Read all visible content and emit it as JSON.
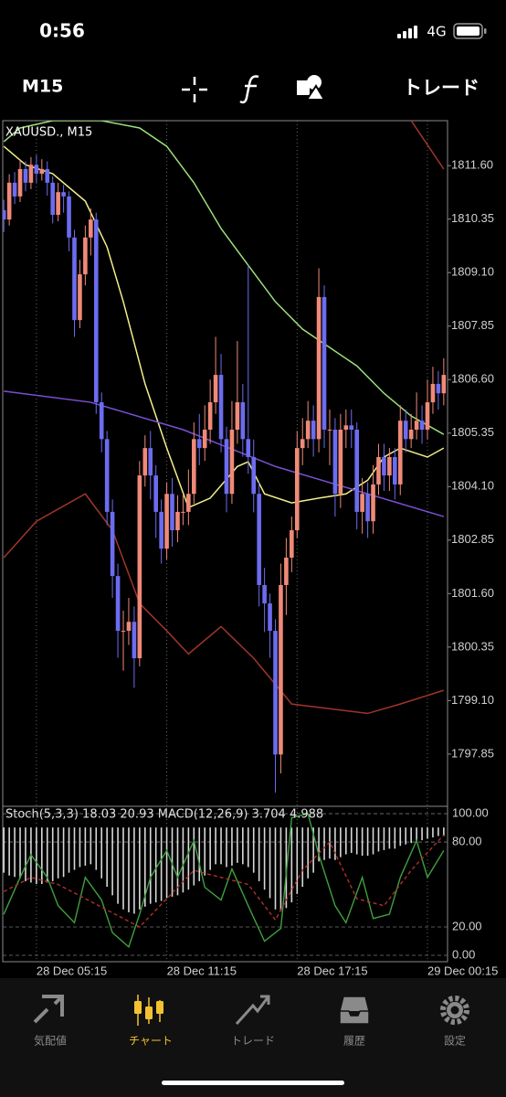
{
  "status_bar": {
    "time": "0:56",
    "network": "4G"
  },
  "toolbar": {
    "timeframe": "M15",
    "trade": "トレード"
  },
  "chart_data": [
    {
      "type": "candlestick",
      "title": "XAUUSD., M15",
      "up_color": "#f08a78",
      "down_color": "#6c6cf0",
      "xlim": [
        -0.2,
        81.7
      ],
      "ylim": [
        1796.63,
        1812.65
      ],
      "yticks": [
        {
          "value": 1811.6,
          "label": "1811.60"
        },
        1810.35,
        {
          "value": 1809.1,
          "label": "1809.10"
        },
        1807.85,
        {
          "value": 1806.6,
          "label": "1806.60"
        },
        1805.35,
        {
          "value": 1804.1,
          "label": "1804.10"
        },
        1802.85,
        {
          "value": 1801.6,
          "label": "1801.60"
        },
        1800.35,
        {
          "value": 1799.1,
          "label": "1799.10"
        },
        1797.85
      ],
      "ohlc": [
        [
          1810.56,
          1810.8,
          1810.05,
          1810.34
        ],
        [
          1810.34,
          1811.4,
          1810.2,
          1811.2
        ],
        [
          1811.2,
          1811.45,
          1810.7,
          1810.88
        ],
        [
          1810.88,
          1811.75,
          1810.75,
          1811.52
        ],
        [
          1811.52,
          1811.7,
          1811.0,
          1811.2
        ],
        [
          1811.2,
          1811.8,
          1811.05,
          1811.62
        ],
        [
          1811.62,
          1811.85,
          1811.2,
          1811.41
        ],
        [
          1811.41,
          1811.75,
          1811.25,
          1811.52
        ],
        [
          1811.52,
          1811.7,
          1810.9,
          1811.2
        ],
        [
          1811.2,
          1811.35,
          1810.25,
          1810.45
        ],
        [
          1810.45,
          1811.2,
          1810.3,
          1810.98
        ],
        [
          1810.98,
          1811.15,
          1810.5,
          1810.88
        ],
        [
          1810.88,
          1811.0,
          1809.6,
          1809.92
        ],
        [
          1809.92,
          1810.1,
          1807.6,
          1807.99
        ],
        [
          1807.99,
          1809.4,
          1807.8,
          1809.06
        ],
        [
          1809.06,
          1810.2,
          1808.8,
          1809.92
        ],
        [
          1809.92,
          1810.6,
          1809.5,
          1810.34
        ],
        [
          1810.34,
          1810.5,
          1805.8,
          1806.07
        ],
        [
          1806.07,
          1806.3,
          1804.9,
          1805.21
        ],
        [
          1805.21,
          1805.4,
          1803.2,
          1803.51
        ],
        [
          1803.51,
          1803.8,
          1801.5,
          1802.01
        ],
        [
          1802.01,
          1802.3,
          1800.1,
          1800.73
        ],
        [
          1800.73,
          1801.2,
          1799.8,
          1800.73
        ],
        [
          1800.73,
          1801.5,
          1800.4,
          1800.94
        ],
        [
          1800.94,
          1801.3,
          1799.4,
          1800.09
        ],
        [
          1800.09,
          1804.7,
          1799.9,
          1804.36
        ],
        [
          1804.36,
          1805.3,
          1804.1,
          1805.0
        ],
        [
          1805.0,
          1805.4,
          1803.8,
          1804.36
        ],
        [
          1804.36,
          1804.6,
          1802.9,
          1803.51
        ],
        [
          1803.51,
          1803.8,
          1802.3,
          1802.65
        ],
        [
          1802.65,
          1804.2,
          1802.4,
          1803.93
        ],
        [
          1803.93,
          1804.3,
          1802.7,
          1803.08
        ],
        [
          1803.08,
          1803.9,
          1802.8,
          1803.51
        ],
        [
          1803.51,
          1803.9,
          1803.2,
          1803.51
        ],
        [
          1803.51,
          1804.5,
          1803.2,
          1803.93
        ],
        [
          1803.93,
          1805.6,
          1803.7,
          1805.21
        ],
        [
          1805.21,
          1805.8,
          1804.6,
          1805.0
        ],
        [
          1805.0,
          1806.0,
          1804.7,
          1805.43
        ],
        [
          1805.43,
          1806.6,
          1805.1,
          1806.07
        ],
        [
          1806.07,
          1807.6,
          1805.8,
          1806.71
        ],
        [
          1806.71,
          1807.2,
          1804.9,
          1805.21
        ],
        [
          1805.21,
          1805.5,
          1803.5,
          1803.93
        ],
        [
          1803.93,
          1806.1,
          1803.7,
          1805.43
        ],
        [
          1805.43,
          1807.5,
          1805.1,
          1806.07
        ],
        [
          1806.07,
          1806.5,
          1804.8,
          1805.21
        ],
        [
          1805.21,
          1809.27,
          1804.4,
          1804.79
        ],
        [
          1804.79,
          1805.2,
          1803.5,
          1803.93
        ],
        [
          1803.93,
          1804.2,
          1801.3,
          1801.8
        ],
        [
          1801.8,
          1802.2,
          1800.7,
          1801.37
        ],
        [
          1801.37,
          1801.6,
          1800.1,
          1800.73
        ],
        [
          1800.73,
          1801.0,
          1796.95,
          1797.84
        ],
        [
          1797.84,
          1802.3,
          1797.4,
          1801.8
        ],
        [
          1801.8,
          1802.9,
          1801.1,
          1802.44
        ],
        [
          1802.44,
          1803.4,
          1802.1,
          1803.08
        ],
        [
          1803.08,
          1805.4,
          1802.9,
          1805.0
        ],
        [
          1805.0,
          1805.7,
          1804.6,
          1805.21
        ],
        [
          1805.21,
          1806.1,
          1805.0,
          1805.64
        ],
        [
          1805.64,
          1806.0,
          1804.8,
          1805.21
        ],
        [
          1805.21,
          1809.2,
          1804.9,
          1808.53
        ],
        [
          1808.53,
          1808.8,
          1805.0,
          1805.43
        ],
        [
          1805.43,
          1805.9,
          1804.6,
          1805.43
        ],
        [
          1805.43,
          1805.7,
          1803.4,
          1803.93
        ],
        [
          1803.93,
          1805.8,
          1803.6,
          1805.43
        ],
        [
          1805.43,
          1805.9,
          1805.0,
          1805.53
        ],
        [
          1805.53,
          1805.9,
          1805.0,
          1805.43
        ],
        [
          1805.43,
          1805.6,
          1803.1,
          1803.51
        ],
        [
          1803.51,
          1804.3,
          1803.0,
          1803.93
        ],
        [
          1803.93,
          1804.2,
          1802.9,
          1803.29
        ],
        [
          1803.29,
          1804.6,
          1803.0,
          1804.15
        ],
        [
          1804.15,
          1805.1,
          1803.9,
          1804.79
        ],
        [
          1804.79,
          1805.1,
          1804.0,
          1804.36
        ],
        [
          1804.36,
          1805.0,
          1804.0,
          1804.79
        ],
        [
          1804.79,
          1805.0,
          1803.8,
          1804.15
        ],
        [
          1804.15,
          1806.0,
          1803.9,
          1805.64
        ],
        [
          1805.64,
          1805.9,
          1804.9,
          1805.21
        ],
        [
          1805.21,
          1805.8,
          1805.0,
          1805.43
        ],
        [
          1805.43,
          1806.3,
          1805.2,
          1805.64
        ],
        [
          1805.64,
          1806.0,
          1805.1,
          1805.43
        ],
        [
          1805.43,
          1806.6,
          1805.2,
          1806.07
        ],
        [
          1806.07,
          1806.9,
          1805.8,
          1806.5
        ],
        [
          1806.5,
          1806.8,
          1805.9,
          1806.28
        ],
        [
          1806.28,
          1807.1,
          1806.0,
          1806.71
        ]
      ],
      "lines": [
        {
          "color": "#9be07a",
          "x": [
            0,
            3,
            9,
            18,
            25,
            30,
            35,
            40,
            45,
            50,
            55,
            60,
            65,
            70,
            75,
            81
          ],
          "values": [
            1812.16,
            1812.48,
            1812.65,
            1812.65,
            1812.48,
            1812.05,
            1811.2,
            1810.13,
            1809.27,
            1808.42,
            1807.78,
            1807.35,
            1806.92,
            1806.28,
            1805.75,
            1805.32
          ]
        },
        {
          "color": "#f2ee8a",
          "x": [
            0,
            4,
            9,
            15,
            19,
            22,
            26,
            30,
            34,
            38,
            43,
            45,
            48,
            53,
            58,
            63,
            67,
            70,
            73,
            78,
            81
          ],
          "values": [
            1812.05,
            1811.62,
            1811.41,
            1810.77,
            1809.7,
            1808.42,
            1806.5,
            1805.0,
            1803.61,
            1803.83,
            1804.57,
            1804.68,
            1803.93,
            1803.72,
            1803.83,
            1803.93,
            1804.25,
            1804.79,
            1805.0,
            1804.79,
            1805.0
          ]
        },
        {
          "color": "#7b4fd6",
          "x": [
            0,
            16,
            33,
            50,
            67,
            81
          ],
          "values": [
            1806.33,
            1806.07,
            1805.43,
            1804.57,
            1803.93,
            1803.4
          ]
        },
        {
          "color": "#a0352a",
          "x": [
            0,
            6,
            15,
            20,
            25,
            30,
            34,
            40,
            46,
            53,
            60,
            67,
            73,
            81
          ],
          "values": [
            1802.44,
            1803.29,
            1803.93,
            1803.08,
            1801.37,
            1800.73,
            1800.19,
            1800.83,
            1800.09,
            1799.02,
            1798.91,
            1798.8,
            1799.02,
            1799.34
          ]
        },
        {
          "color": "#a0352a",
          "x": [
            75,
            81
          ],
          "values": [
            1812.65,
            1811.52
          ]
        }
      ]
    },
    {
      "type": "oscillator",
      "title": "Stoch(5,3,3) 18.03 20.93 MACD(12,26,9) 3.704 4.988",
      "xlim": [
        -0.2,
        81.7
      ],
      "ylim": [
        -4.5,
        105.2
      ],
      "y2lim": [
        -1.5,
        9.5
      ],
      "yticks": [
        {
          "value": 100,
          "label": "100.00"
        },
        {
          "value": 80,
          "label": "80.00"
        },
        {
          "value": 20,
          "label": "20.00"
        },
        {
          "value": 0,
          "label": "0.00"
        }
      ],
      "xticks": [
        {
          "value": 6,
          "label": "28 Dec 05:15"
        },
        {
          "value": 30,
          "label": "28 Dec 11:15"
        },
        {
          "value": 54,
          "label": "28 Dec 17:15"
        },
        {
          "value": 78,
          "label": "29 Dec 00:15"
        }
      ],
      "series": [
        {
          "color": "#d8d8d8",
          "axis": "y2",
          "values": [
            3.2,
            3.4,
            3.5,
            3.6,
            3.8,
            3.9,
            4.0,
            4.0,
            3.9,
            3.8,
            3.6,
            3.5,
            3.2,
            3.0,
            2.8,
            2.7,
            2.6,
            3.0,
            3.6,
            4.2,
            4.8,
            5.4,
            5.8,
            6.0,
            6.1,
            5.8,
            5.6,
            5.4,
            5.3,
            5.2,
            5.0,
            4.9,
            4.8,
            4.6,
            4.4,
            4.1,
            3.8,
            3.4,
            3.0,
            2.6,
            2.6,
            2.8,
            2.7,
            2.5,
            2.6,
            2.8,
            3.2,
            3.8,
            4.4,
            5.0,
            5.8,
            5.9,
            5.7,
            5.3,
            4.7,
            4.2,
            3.6,
            3.2,
            2.4,
            2.3,
            2.2,
            2.3,
            2.1,
            1.9,
            1.8,
            1.9,
            2.0,
            2.0,
            1.9,
            1.7,
            1.6,
            1.5,
            1.5,
            1.3,
            1.2,
            1.1,
            1.0,
            0.9,
            0.8,
            0.7,
            0.6,
            0.6
          ]
        },
        {
          "color": "#3fa03f",
          "x": [
            0,
            3,
            5,
            8,
            10,
            13,
            15,
            18,
            20,
            23,
            25,
            27,
            30,
            32,
            35,
            37,
            40,
            42,
            45,
            48,
            51,
            53,
            56,
            58,
            61,
            63,
            66,
            68,
            71,
            73,
            76,
            78,
            81
          ],
          "values": [
            29,
            55,
            71,
            55,
            35,
            23,
            55,
            39,
            16,
            6,
            29,
            55,
            74,
            55,
            81,
            48,
            39,
            61,
            35,
            10,
            19,
            97,
            100,
            71,
            35,
            23,
            55,
            26,
            29,
            55,
            81,
            55,
            74
          ]
        },
        {
          "color": "#b0302a",
          "dashed": true,
          "x": [
            0,
            5,
            10,
            15,
            20,
            25,
            30,
            35,
            40,
            45,
            50,
            55,
            60,
            65,
            70,
            75,
            81
          ],
          "values": [
            45,
            55,
            50,
            40,
            30,
            20,
            40,
            60,
            55,
            50,
            25,
            60,
            80,
            40,
            35,
            60,
            85
          ]
        }
      ]
    }
  ],
  "tab_bar": {
    "tabs": [
      "気配値",
      "チャート",
      "トレード",
      "履歴",
      "設定"
    ],
    "active": 1,
    "active_color": "#f2c230"
  }
}
